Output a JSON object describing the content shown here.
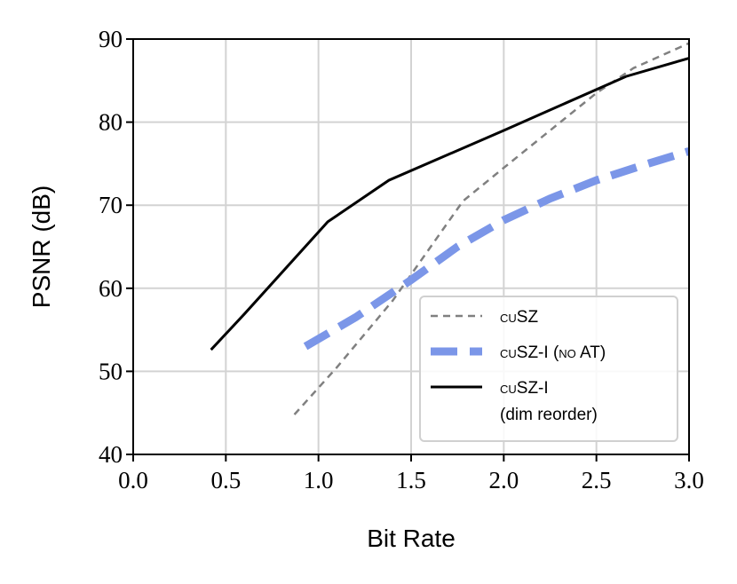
{
  "chart_data": {
    "type": "line",
    "xlabel": "Bit Rate",
    "ylabel": "PSNR (dB)",
    "xlim": [
      0,
      3
    ],
    "xticks": [
      {
        "value": 0,
        "label": "0.0"
      },
      0.5,
      {
        "value": 1,
        "label": "1.0"
      },
      1.5,
      {
        "value": 2,
        "label": "2.0"
      },
      2.5,
      {
        "value": 3,
        "label": "3.0"
      }
    ],
    "ylim": [
      40,
      90
    ],
    "yticks": [
      40,
      50,
      60,
      70,
      80,
      90
    ],
    "grid": true,
    "legend": "lower right",
    "series": [
      {
        "name": "cuSZ",
        "color": "#808080",
        "linestyle": "dashed",
        "x": [
          0.87,
          1.1,
          1.4,
          1.78,
          2.0,
          2.25,
          2.5,
          2.7,
          3.0
        ],
        "values": [
          44.8,
          50.5,
          58.5,
          70.5,
          74.5,
          79,
          83.5,
          86.5,
          89.5
        ]
      },
      {
        "name": "cuSZ-I (no AT)",
        "color": "#7b96e8",
        "linestyle": "dashed",
        "x": [
          0.93,
          1.2,
          1.5,
          1.75,
          2.0,
          2.25,
          2.5,
          2.75,
          3.0
        ],
        "values": [
          53,
          56.5,
          61,
          65,
          68.2,
          70.8,
          73,
          74.8,
          76.5
        ]
      },
      {
        "name": "cuSZ-I\n(dim reorder)",
        "color": "#000000",
        "linestyle": "solid",
        "x": [
          0.42,
          0.6,
          1.05,
          1.38,
          2.0,
          2.66,
          3.0
        ],
        "values": [
          52.6,
          56.9,
          68,
          73,
          79,
          85.5,
          87.7
        ]
      }
    ]
  }
}
